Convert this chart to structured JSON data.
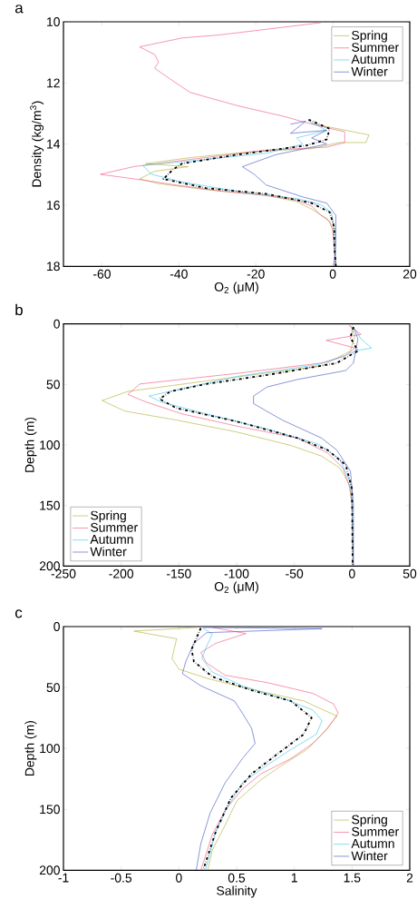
{
  "chart_data": [
    {
      "type": "line",
      "title": "a",
      "xlabel": "O$_{2}$ (μM)",
      "ylabel": "Density (kg/m$^{3}$)",
      "xlim": [
        -70,
        20
      ],
      "xticks": [
        -60,
        -40,
        -20,
        0,
        20
      ],
      "ylim": [
        18,
        10
      ],
      "yticks": [
        10,
        12,
        14,
        16,
        18
      ],
      "legend": "top right",
      "series": [
        {
          "name": "Spring",
          "color": "#adad2e",
          "x": [
            -5.5,
            9.4,
            8.6,
            1.6,
            -5.5,
            -21.2,
            -36.9,
            -48.6,
            -37.6,
            -46.3,
            -50.2,
            -45.5,
            -33.0,
            -17.3,
            -9.4,
            -5.5,
            -1.6,
            0,
            0.4,
            0.8
          ],
          "values": [
            13.33,
            13.7,
            13.95,
            13.95,
            14.15,
            14.25,
            14.44,
            14.64,
            14.74,
            14.89,
            15.14,
            15.29,
            15.49,
            15.68,
            15.88,
            16.13,
            16.43,
            16.73,
            17.32,
            18
          ]
        },
        {
          "name": "Summer",
          "color": "#f0507a",
          "x": [
            -3.1,
            -29.4,
            -39.2,
            -50.2,
            -46.3,
            -45.3,
            -46.3,
            -42.3,
            -37.1,
            -32.9,
            -24.3,
            -12.5,
            -7.0,
            3.1,
            3.1,
            -1.6,
            -17.3,
            -36.9,
            -51.8,
            -60.4,
            -48.6,
            -40.8,
            -29.0,
            -17.3,
            -9.4,
            -5.5,
            -3.1,
            -0.8,
            0,
            0.8
          ],
          "values": [
            10.03,
            10.43,
            10.53,
            10.82,
            11.07,
            11.32,
            11.52,
            11.87,
            12.31,
            12.46,
            12.76,
            13.1,
            13.3,
            13.6,
            13.95,
            14.1,
            14.2,
            14.5,
            14.74,
            14.99,
            15.19,
            15.34,
            15.54,
            15.68,
            15.83,
            16.03,
            16.33,
            16.53,
            16.83,
            18
          ]
        },
        {
          "name": "Autumn",
          "color": "#33c4f0",
          "x": [
            -6.3,
            -1.6,
            -9.4,
            -7.8,
            -17.3,
            -33.0,
            -49.4,
            -47.1,
            -39.2,
            -25.1,
            -9.4,
            -3.1,
            -0.4,
            0.4,
            0.8
          ],
          "values": [
            13.25,
            13.55,
            13.8,
            14.0,
            14.3,
            14.5,
            14.7,
            14.99,
            15.24,
            15.54,
            15.78,
            15.98,
            16.23,
            16.73,
            18
          ]
        },
        {
          "name": "Winter",
          "color": "#3a4fc0",
          "x": [
            -11.0,
            -7.0,
            -11.0,
            -1.6,
            -5.5,
            -1.6,
            -14.9,
            -23.5,
            -20.4,
            -17.3,
            -7.8,
            -1.6,
            0.8,
            0.8,
            0.2
          ],
          "values": [
            13.35,
            13.25,
            13.65,
            13.55,
            13.8,
            14.0,
            14.35,
            14.74,
            14.99,
            15.34,
            15.73,
            15.93,
            16.33,
            17.32,
            18
          ]
        },
        {
          "color": "#000000",
          "line_style": "dashdot",
          "x": [
            -6.3,
            -0.8,
            -1.6,
            -7.0,
            -25.1,
            -39.2,
            -41.6,
            -44.0,
            -33.0,
            -17.3,
            -5.5,
            -0.8,
            0.4,
            0.4,
            0.8
          ],
          "values": [
            13.2,
            13.5,
            13.85,
            14.05,
            14.35,
            14.64,
            14.84,
            15.14,
            15.44,
            15.63,
            15.93,
            16.23,
            16.73,
            17.32,
            18
          ]
        }
      ]
    },
    {
      "type": "line",
      "title": "b",
      "xlabel": "O$_{2}$ (μM)",
      "ylabel": "Depth (m)",
      "xlim": [
        -250,
        50
      ],
      "xticks": [
        -250,
        -200,
        -150,
        -100,
        -50,
        0,
        50
      ],
      "ylim": [
        200,
        0
      ],
      "yticks": [
        0,
        50,
        100,
        150,
        200
      ],
      "legend": "bottom left",
      "series": [
        {
          "name": "Spring",
          "color": "#adad2e",
          "x": [
            -1.4,
            2.5,
            -1.4,
            -26.4,
            -126,
            -194.3,
            -216.5,
            -196.9,
            -152.3,
            -99.8,
            -52.6,
            -26.4,
            -10.6,
            -2.8,
            0,
            1
          ],
          "values": [
            1.2,
            9.9,
            22.3,
            34.7,
            47.1,
            55.8,
            63.3,
            72,
            79.4,
            89.3,
            100.5,
            109.2,
            119.1,
            131.5,
            148.9,
            200
          ]
        },
        {
          "name": "Summer",
          "color": "#f0507a",
          "x": [
            -2.8,
            7.8,
            -22.4,
            2.5,
            -5.4,
            -26.4,
            -99.8,
            -183.8,
            -194.3,
            -178.5,
            -147,
            -99.8,
            -47.3,
            -21.1,
            -8,
            -1.4,
            0,
            1
          ],
          "values": [
            1.2,
            8.7,
            13.6,
            19.9,
            26,
            32.3,
            40.9,
            49.6,
            58.3,
            64.5,
            74.4,
            84.4,
            94.3,
            106.7,
            119,
            136.5,
            148.9,
            200
          ]
        },
        {
          "name": "Autumn",
          "color": "#33c4f0",
          "x": [
            1.2,
            7.8,
            16.9,
            2.5,
            -8,
            -29,
            -99.8,
            -175.9,
            -165.4,
            -126,
            -73.6,
            -29,
            -10.6,
            -1.4,
            0,
            1
          ],
          "values": [
            2.5,
            12.4,
            19.9,
            22.3,
            27.3,
            33.5,
            43.4,
            59.6,
            64.5,
            74.4,
            86.8,
            99.3,
            111.7,
            131.5,
            148.9,
            200
          ]
        },
        {
          "name": "Winter",
          "color": "#3a4fc0",
          "x": [
            1.2,
            5.1,
            1.2,
            -5.4,
            -47.3,
            -73.6,
            -85.4,
            -85.4,
            -60.5,
            -26.4,
            -13.2,
            -1.4,
            1.2,
            1.2
          ],
          "values": [
            2.5,
            12.4,
            32.3,
            38.5,
            45.9,
            52.1,
            59.6,
            65.8,
            79.4,
            94.3,
            104.2,
            121.6,
            148.9,
            200
          ]
        },
        {
          "color": "#000000",
          "line_style": "dashdot",
          "x": [
            1.2,
            -1.4,
            5.1,
            -13.2,
            -73.6,
            -126,
            -157.5,
            -166.7,
            -152.3,
            -99.8,
            -47.3,
            -21.1,
            -5.4,
            0,
            0.5
          ],
          "values": [
            2.5,
            11.2,
            22.3,
            32.3,
            42.2,
            49.6,
            55.8,
            62,
            69.5,
            80.6,
            94.3,
            104.2,
            116.6,
            136.5,
            200
          ]
        }
      ]
    },
    {
      "type": "line",
      "title": "c",
      "xlabel": "Salinity",
      "ylabel": "Depth (m)",
      "xlim": [
        -1,
        2
      ],
      "xticks": [
        -1,
        -0.5,
        0,
        0.5,
        1,
        1.5,
        2
      ],
      "ylim": [
        200,
        0
      ],
      "yticks": [
        0,
        50,
        100,
        150,
        200
      ],
      "legend": "bottom right",
      "series": [
        {
          "name": "Spring",
          "color": "#adad2e",
          "x": [
            0.16,
            -0.39,
            -0.02,
            -0.06,
            0.0,
            0.24,
            0.55,
            1.08,
            1.37,
            1.24,
            1.11,
            0.9,
            0.71,
            0.5,
            0.4,
            0.29,
            0.25
          ],
          "values": [
            0.7,
            3.7,
            10,
            26.2,
            34.9,
            42.4,
            49.8,
            61,
            73.5,
            88.5,
            100.9,
            113.4,
            125.8,
            143.3,
            163.2,
            183.2,
            200
          ]
        },
        {
          "name": "Summer",
          "color": "#f0507a",
          "x": [
            0.29,
            0.58,
            0.32,
            0.19,
            0.24,
            0.4,
            0.77,
            1.16,
            1.34,
            1.38,
            1.29,
            1.16,
            0.97,
            0.71,
            0.55,
            0.4,
            0.29,
            0.19
          ],
          "values": [
            0.7,
            5.7,
            13.7,
            21.2,
            29.9,
            39.9,
            46.1,
            54.8,
            63.5,
            71,
            83.5,
            95.9,
            108.4,
            120.9,
            133.3,
            150.8,
            170.7,
            200
          ]
        },
        {
          "name": "Autumn",
          "color": "#33c4f0",
          "x": [
            0.21,
            0.29,
            0.24,
            0.2,
            0.29,
            0.55,
            0.92,
            1.16,
            1.24,
            1.19,
            0.97,
            0.77,
            0.55,
            0.42,
            0.32,
            0.23
          ],
          "values": [
            1.2,
            6.2,
            16.2,
            26.2,
            37.4,
            48.6,
            59.8,
            68.5,
            77.2,
            88.5,
            100.9,
            113.4,
            128.3,
            148.3,
            168.2,
            200
          ]
        },
        {
          "name": "Winter",
          "color": "#3a4fc0",
          "x": [
            0.21,
            1.24,
            0.24,
            0.13,
            0.06,
            0.03,
            0.19,
            0.48,
            0.55,
            0.63,
            0.66,
            0.55,
            0.4,
            0.27,
            0.19,
            0.15
          ],
          "values": [
            0.7,
            1.7,
            5,
            13.7,
            28.7,
            38.6,
            48.6,
            61,
            71,
            83.5,
            95.9,
            108.4,
            128.3,
            153.2,
            178.2,
            200
          ]
        },
        {
          "color": "#000000",
          "line_style": "dashdot",
          "x": [
            0.19,
            0.11,
            0.13,
            0.29,
            0.63,
            0.97,
            1.15,
            1.08,
            0.87,
            0.63,
            0.45,
            0.32,
            0.21
          ],
          "values": [
            1.2,
            18.7,
            28.7,
            41.1,
            52.3,
            61,
            74.8,
            88.5,
            103.4,
            120.9,
            140.8,
            168.2,
            200
          ]
        }
      ]
    }
  ]
}
